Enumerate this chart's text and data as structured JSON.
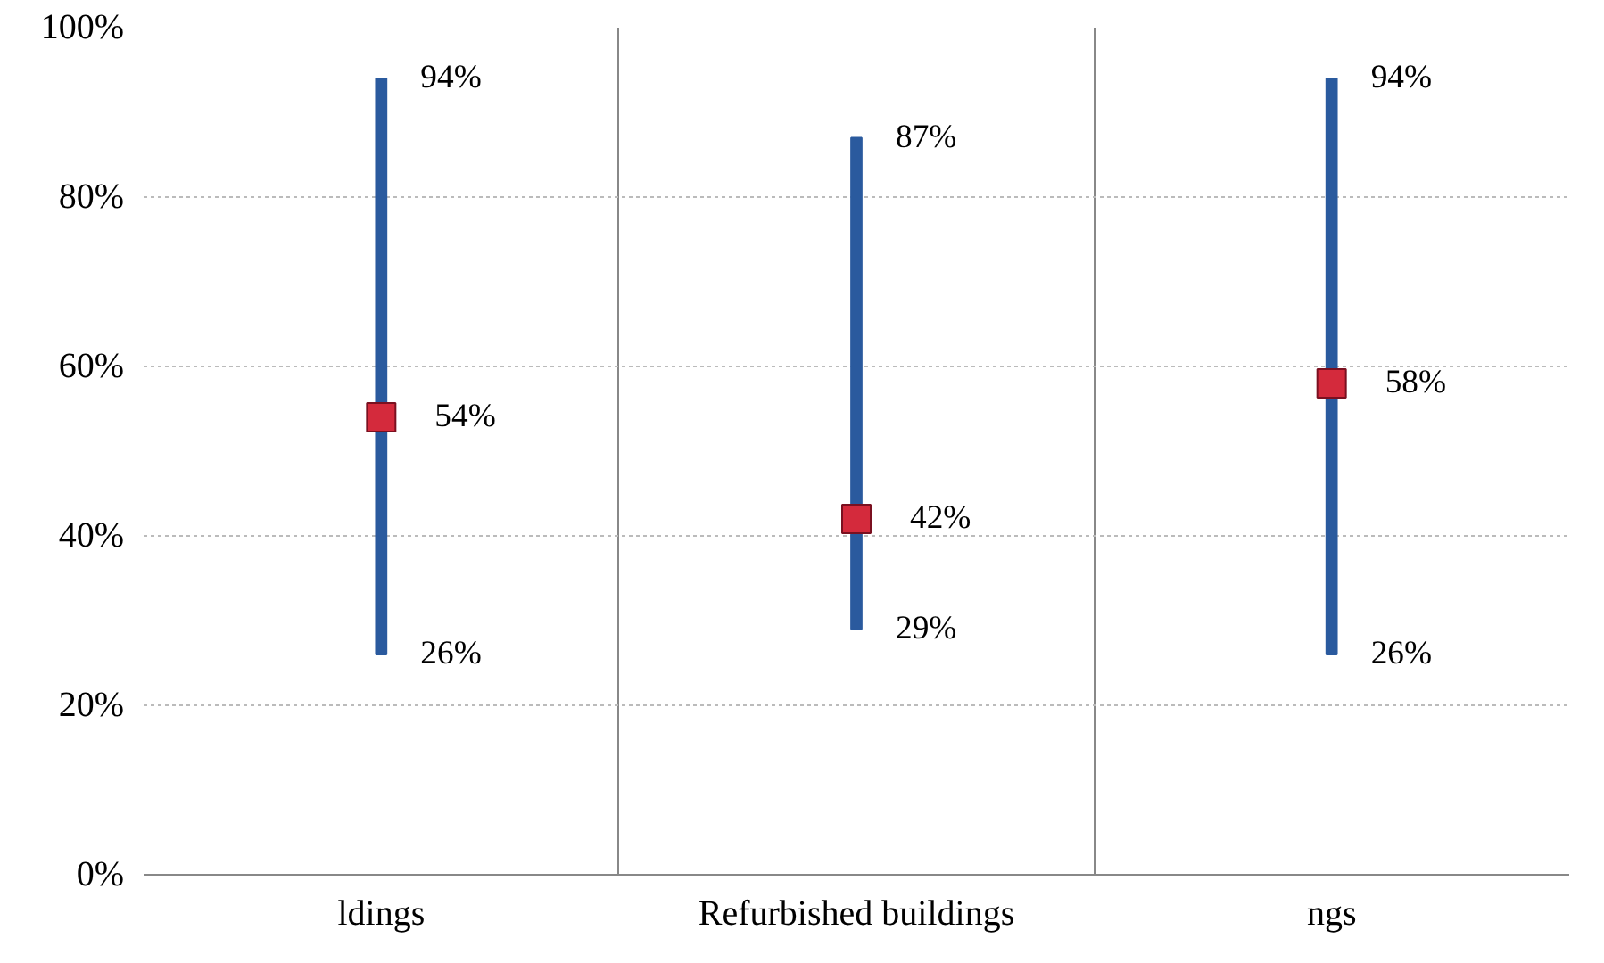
{
  "chart_data": {
    "type": "bar",
    "categories": [
      "ldings",
      "Refurbished buildings",
      "ngs"
    ],
    "series": [
      {
        "type": "bar",
        "color": "#2a5a9e",
        "base": [
          26,
          29,
          26
        ],
        "values": [
          68,
          58,
          68
        ]
      },
      {
        "type": "scatter",
        "color": "#d42a3c",
        "values": [
          54,
          42,
          58
        ],
        "marker": "square"
      }
    ],
    "annotations": [
      {
        "text": "94%",
        "x": "ldings",
        "y": 94
      },
      {
        "text": "26%",
        "x": "ldings",
        "y": 26
      },
      {
        "text": "87%",
        "x": "Refurbished buildings",
        "y": 87
      },
      {
        "text": "29%",
        "x": "Refurbished buildings",
        "y": 29
      },
      {
        "text": "94%",
        "x": "ngs",
        "y": 94
      },
      {
        "text": "26%",
        "x": "ngs",
        "y": 26
      }
    ],
    "value_labels": [
      "54%",
      "42%",
      "58%"
    ],
    "ylim": [
      0,
      100
    ],
    "yticks": [
      {
        "value": 0,
        "label": "0%"
      },
      {
        "value": 20,
        "label": "20%"
      },
      {
        "value": 40,
        "label": "40%"
      },
      {
        "value": 60,
        "label": "60%"
      },
      {
        "value": 80,
        "label": "80%"
      },
      {
        "value": 100,
        "label": "100%"
      }
    ],
    "grid": true
  }
}
